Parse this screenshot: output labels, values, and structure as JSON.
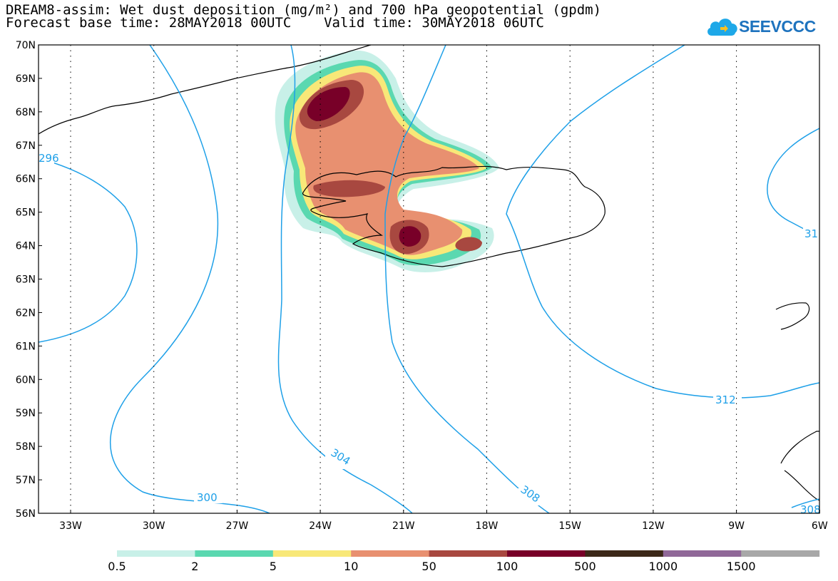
{
  "title": {
    "line1": "DREAM8-assim: Wet dust deposition (mg/m²) and 700 hPa geopotential (gpdm)",
    "line2": "Forecast base time: 28MAY2018 00UTC    Valid time: 30MAY2018 06UTC"
  },
  "logo": {
    "text": "SEEVCCC",
    "icon": "cloud-logo-icon"
  },
  "map": {
    "region": "Iceland",
    "lat_ticks": [
      "70N",
      "69N",
      "68N",
      "67N",
      "66N",
      "65N",
      "64N",
      "63N",
      "62N",
      "61N",
      "60N",
      "59N",
      "58N",
      "57N",
      "56N"
    ],
    "lon_ticks": [
      "33W",
      "30W",
      "27W",
      "24W",
      "21W",
      "18W",
      "15W",
      "12W",
      "9W",
      "6W"
    ],
    "contour_labels": [
      "296",
      "300",
      "304",
      "308",
      "312",
      "31",
      "308"
    ]
  },
  "legend": {
    "labels": [
      "0.5",
      "2",
      "5",
      "10",
      "50",
      "100",
      "500",
      "1000",
      "1500"
    ],
    "colors": [
      "#c8f0e8",
      "#5ad8b0",
      "#f8e878",
      "#e89070",
      "#a84840",
      "#780028",
      "#3c2818",
      "#906898",
      "#a8a8a8"
    ]
  }
}
